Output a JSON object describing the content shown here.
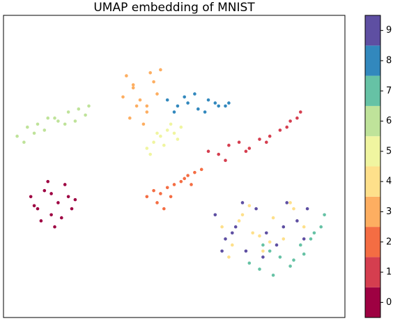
{
  "chart_data": {
    "type": "scatter",
    "title": "UMAP embedding of MNIST",
    "xlim": [
      0,
      100
    ],
    "ylim": [
      0,
      100
    ],
    "series": [
      {
        "name": "0",
        "color": "#9e0142",
        "x": [
          8,
          10,
          12,
          14,
          16,
          18,
          20,
          11,
          15,
          19,
          9,
          13,
          17,
          21,
          14
        ],
        "y": [
          40,
          36,
          42,
          34,
          38,
          44,
          36,
          32,
          30,
          40,
          37,
          45,
          33,
          39,
          41
        ]
      },
      {
        "name": "1",
        "color": "#d53e4f",
        "x": [
          60,
          63,
          66,
          69,
          72,
          75,
          78,
          81,
          84,
          87,
          65,
          71,
          77,
          83,
          86
        ],
        "y": [
          55,
          54,
          57,
          58,
          56,
          59,
          60,
          62,
          65,
          68,
          52,
          55,
          58,
          63,
          66
        ]
      },
      {
        "name": "2",
        "color": "#f46d43",
        "x": [
          42,
          44,
          46,
          48,
          50,
          52,
          54,
          56,
          58,
          45,
          49,
          53,
          55,
          47
        ],
        "y": [
          40,
          42,
          41,
          43,
          44,
          45,
          47,
          48,
          49,
          38,
          40,
          46,
          44,
          36
        ]
      },
      {
        "name": "3",
        "color": "#fdae61",
        "x": [
          36,
          38,
          40,
          42,
          44,
          46,
          37,
          41,
          45,
          39,
          43,
          35,
          38,
          42
        ],
        "y": [
          80,
          76,
          72,
          68,
          78,
          82,
          66,
          64,
          74,
          70,
          81,
          73,
          77,
          70
        ]
      },
      {
        "name": "4",
        "color": "#fee08b",
        "x": [
          64,
          67,
          70,
          73,
          76,
          79,
          82,
          85,
          88,
          66,
          72,
          78,
          84,
          69,
          75
        ],
        "y": [
          30,
          24,
          34,
          28,
          22,
          33,
          26,
          36,
          30,
          20,
          37,
          25,
          38,
          32,
          27
        ]
      },
      {
        "name": "5",
        "color": "#f0f5a0",
        "x": [
          42,
          44,
          46,
          48,
          50,
          52,
          43,
          47,
          51,
          45,
          49
        ],
        "y": [
          56,
          58,
          60,
          62,
          61,
          63,
          54,
          57,
          59,
          61,
          64
        ]
      },
      {
        "name": "6",
        "color": "#bfe39a",
        "x": [
          4,
          7,
          10,
          13,
          16,
          19,
          22,
          25,
          6,
          12,
          18,
          24,
          9,
          15,
          21
        ],
        "y": [
          60,
          63,
          64,
          66,
          65,
          68,
          69,
          70,
          58,
          62,
          64,
          67,
          61,
          66,
          65
        ]
      },
      {
        "name": "7",
        "color": "#66c2a5",
        "x": [
          72,
          75,
          78,
          81,
          84,
          87,
          90,
          93,
          79,
          85,
          91,
          76,
          88,
          94
        ],
        "y": [
          18,
          16,
          22,
          20,
          17,
          24,
          26,
          30,
          14,
          19,
          28,
          24,
          21,
          34
        ]
      },
      {
        "name": "8",
        "color": "#3288bd",
        "x": [
          48,
          51,
          54,
          57,
          60,
          63,
          66,
          50,
          56,
          62,
          53,
          59,
          65
        ],
        "y": [
          72,
          70,
          71,
          69,
          72,
          70,
          71,
          68,
          74,
          71,
          73,
          68,
          70
        ]
      },
      {
        "name": "9",
        "color": "#5e4fa2",
        "x": [
          62,
          65,
          68,
          71,
          74,
          77,
          80,
          83,
          86,
          89,
          64,
          70,
          76,
          82,
          88,
          67
        ],
        "y": [
          34,
          26,
          30,
          22,
          36,
          28,
          24,
          38,
          32,
          36,
          22,
          38,
          20,
          30,
          26,
          28
        ]
      }
    ]
  }
}
